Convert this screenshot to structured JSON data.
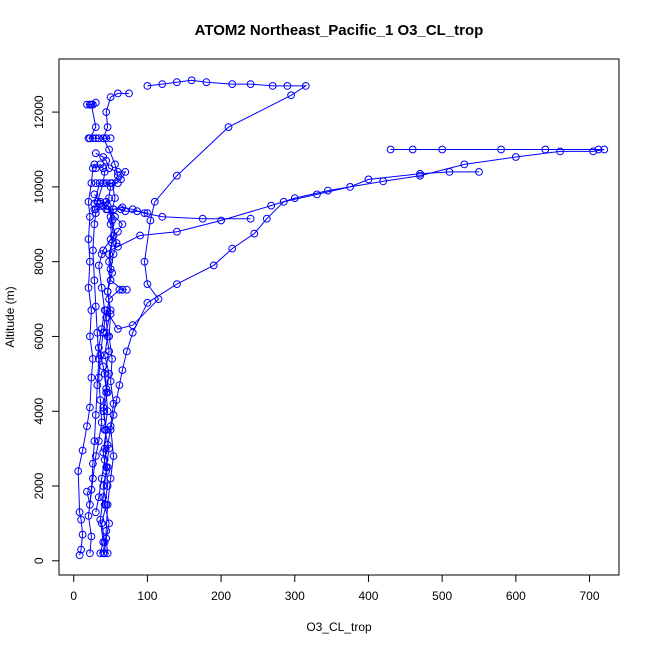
{
  "chart_data": {
    "type": "line",
    "title": "ATOM2 Northeast_Pacific_1 O3_CL_trop",
    "xlabel": "O3_CL_trop",
    "ylabel": "Altitude (m)",
    "xlim": [
      -20,
      740
    ],
    "ylim": [
      -380,
      13420
    ],
    "x_ticks": [
      0,
      100,
      200,
      300,
      400,
      500,
      600,
      700
    ],
    "y_ticks": [
      0,
      2000,
      4000,
      6000,
      8000,
      10000,
      12000
    ],
    "grid": false,
    "legend": "none",
    "marker": "open-circle",
    "color": "#0000ff",
    "series": [
      {
        "points": [
          [
            8,
            150
          ],
          [
            10,
            300
          ],
          [
            12,
            700
          ],
          [
            10,
            1100
          ],
          [
            8,
            1300
          ],
          [
            6,
            2400
          ],
          [
            12,
            2950
          ],
          [
            18,
            3600
          ],
          [
            22,
            4100
          ],
          [
            24,
            4900
          ],
          [
            26,
            5400
          ],
          [
            22,
            6000
          ],
          [
            24,
            6700
          ],
          [
            20,
            7300
          ],
          [
            22,
            8000
          ],
          [
            20,
            8600
          ],
          [
            22,
            9200
          ],
          [
            20,
            9600
          ],
          [
            24,
            10100
          ],
          [
            26,
            10500
          ],
          [
            28,
            10600
          ],
          [
            30,
            10500
          ],
          [
            36,
            10600
          ],
          [
            40,
            10500
          ],
          [
            42,
            10400
          ],
          [
            40,
            10100
          ],
          [
            32,
            9600
          ],
          [
            28,
            9400
          ],
          [
            30,
            9300
          ],
          [
            28,
            9000
          ],
          [
            26,
            8300
          ],
          [
            28,
            7500
          ],
          [
            30,
            6800
          ],
          [
            32,
            6100
          ],
          [
            34,
            5400
          ],
          [
            32,
            4700
          ],
          [
            30,
            3900
          ],
          [
            28,
            3200
          ],
          [
            26,
            2600
          ],
          [
            24,
            1900
          ],
          [
            20,
            1200
          ],
          [
            24,
            650
          ],
          [
            22,
            200
          ]
        ]
      },
      {
        "points": [
          [
            40,
            200
          ],
          [
            42,
            500
          ],
          [
            38,
            1000
          ],
          [
            44,
            1500
          ],
          [
            40,
            2000
          ],
          [
            46,
            2500
          ],
          [
            42,
            3000
          ],
          [
            44,
            3500
          ],
          [
            40,
            4000
          ],
          [
            46,
            4500
          ],
          [
            42,
            5000
          ],
          [
            48,
            5600
          ],
          [
            44,
            6100
          ],
          [
            50,
            6700
          ],
          [
            46,
            7200
          ],
          [
            52,
            7700
          ],
          [
            48,
            8200
          ],
          [
            54,
            8700
          ],
          [
            50,
            9200
          ],
          [
            56,
            9700
          ],
          [
            52,
            10100
          ],
          [
            60,
            10300
          ],
          [
            56,
            10600
          ],
          [
            48,
            11000
          ],
          [
            40,
            11300
          ],
          [
            46,
            11600
          ],
          [
            44,
            12000
          ],
          [
            50,
            12400
          ],
          [
            60,
            12500
          ],
          [
            75,
            12500
          ]
        ]
      },
      {
        "points": [
          [
            46,
            200
          ],
          [
            44,
            600
          ],
          [
            48,
            1000
          ],
          [
            42,
            1500
          ],
          [
            46,
            2000
          ],
          [
            44,
            2500
          ],
          [
            48,
            3000
          ],
          [
            42,
            3500
          ],
          [
            46,
            4000
          ],
          [
            44,
            4500
          ],
          [
            48,
            5000
          ],
          [
            42,
            5500
          ],
          [
            46,
            6000
          ],
          [
            44,
            6500
          ],
          [
            48,
            7000
          ],
          [
            62,
            7250
          ],
          [
            72,
            7250
          ],
          [
            66,
            7250
          ],
          [
            50,
            7500
          ],
          [
            48,
            8000
          ],
          [
            52,
            8500
          ],
          [
            50,
            9000
          ],
          [
            54,
            9400
          ],
          [
            66,
            9450
          ],
          [
            80,
            9400
          ],
          [
            96,
            9300
          ],
          [
            120,
            9200
          ],
          [
            175,
            9150
          ],
          [
            240,
            9150
          ]
        ]
      },
      {
        "points": [
          [
            18,
            1850
          ],
          [
            22,
            1500
          ],
          [
            26,
            2200
          ],
          [
            30,
            2800
          ],
          [
            34,
            3200
          ],
          [
            38,
            3700
          ],
          [
            36,
            4300
          ],
          [
            34,
            4900
          ],
          [
            36,
            5500
          ],
          [
            40,
            6100
          ],
          [
            44,
            6700
          ],
          [
            60,
            6200
          ],
          [
            80,
            6300
          ],
          [
            115,
            7000
          ],
          [
            100,
            7400
          ],
          [
            96,
            8000
          ],
          [
            104,
            9100
          ],
          [
            110,
            9600
          ],
          [
            140,
            10300
          ],
          [
            210,
            11600
          ],
          [
            295,
            12450
          ],
          [
            315,
            12700
          ],
          [
            290,
            12700
          ],
          [
            270,
            12700
          ],
          [
            240,
            12750
          ],
          [
            215,
            12750
          ],
          [
            180,
            12800
          ],
          [
            160,
            12850
          ],
          [
            140,
            12800
          ],
          [
            120,
            12750
          ],
          [
            100,
            12700
          ]
        ]
      },
      {
        "points": [
          [
            30,
            1300
          ],
          [
            34,
            1700
          ],
          [
            38,
            2200
          ],
          [
            42,
            2700
          ],
          [
            46,
            3100
          ],
          [
            50,
            3500
          ],
          [
            54,
            3900
          ],
          [
            58,
            4300
          ],
          [
            62,
            4700
          ],
          [
            66,
            5100
          ],
          [
            72,
            5600
          ],
          [
            80,
            6100
          ],
          [
            100,
            6900
          ],
          [
            140,
            7400
          ],
          [
            190,
            7900
          ],
          [
            215,
            8350
          ],
          [
            245,
            8750
          ],
          [
            262,
            9150
          ],
          [
            285,
            9600
          ],
          [
            330,
            9800
          ],
          [
            375,
            10000
          ],
          [
            400,
            10200
          ],
          [
            470,
            10350
          ],
          [
            510,
            10400
          ],
          [
            550,
            10400
          ]
        ]
      },
      {
        "points": [
          [
            38,
            8200
          ],
          [
            60,
            8400
          ],
          [
            90,
            8700
          ],
          [
            140,
            8800
          ],
          [
            200,
            9100
          ],
          [
            268,
            9500
          ],
          [
            300,
            9700
          ],
          [
            345,
            9900
          ],
          [
            420,
            10150
          ],
          [
            470,
            10300
          ],
          [
            530,
            10600
          ],
          [
            600,
            10800
          ],
          [
            660,
            10950
          ],
          [
            705,
            10950
          ],
          [
            720,
            11000
          ],
          [
            712,
            11000
          ],
          [
            640,
            11000
          ],
          [
            580,
            11000
          ],
          [
            500,
            11000
          ],
          [
            460,
            11000
          ],
          [
            430,
            11000
          ]
        ]
      },
      {
        "points": [
          [
            20,
            11300
          ],
          [
            30,
            11300
          ],
          [
            40,
            11300
          ],
          [
            50,
            11300
          ],
          [
            44,
            11300
          ],
          [
            34,
            11300
          ],
          [
            26,
            11300
          ],
          [
            22,
            11300
          ],
          [
            30,
            11600
          ],
          [
            24,
            12200
          ],
          [
            18,
            12200
          ],
          [
            22,
            12200
          ],
          [
            26,
            12200
          ],
          [
            30,
            12250
          ],
          [
            22,
            12200
          ]
        ]
      },
      {
        "points": [
          [
            30,
            10100
          ],
          [
            40,
            10100
          ],
          [
            50,
            10100
          ],
          [
            60,
            10100
          ],
          [
            45,
            10100
          ],
          [
            35,
            10100
          ],
          [
            28,
            9550
          ],
          [
            36,
            9550
          ],
          [
            44,
            9600
          ],
          [
            48,
            9700
          ],
          [
            40,
            9500
          ],
          [
            30,
            9400
          ],
          [
            44,
            9400
          ],
          [
            54,
            9400
          ],
          [
            64,
            9400
          ],
          [
            70,
            9350
          ],
          [
            86,
            9350
          ],
          [
            100,
            9300
          ]
        ]
      },
      {
        "points": [
          [
            28,
            9800
          ],
          [
            36,
            9600
          ],
          [
            46,
            9400
          ],
          [
            56,
            9200
          ],
          [
            66,
            9000
          ],
          [
            60,
            8800
          ],
          [
            50,
            8600
          ],
          [
            40,
            8300
          ],
          [
            34,
            7900
          ],
          [
            38,
            7300
          ],
          [
            42,
            6700
          ],
          [
            38,
            6200
          ],
          [
            34,
            5700
          ],
          [
            40,
            5200
          ],
          [
            44,
            4600
          ],
          [
            40,
            4100
          ],
          [
            44,
            3500
          ],
          [
            40,
            2900
          ],
          [
            44,
            2400
          ],
          [
            40,
            1700
          ],
          [
            36,
            1100
          ],
          [
            40,
            500
          ],
          [
            36,
            200
          ]
        ]
      },
      {
        "points": [
          [
            30,
            10900
          ],
          [
            40,
            10800
          ],
          [
            44,
            10700
          ],
          [
            48,
            10500
          ],
          [
            60,
            10400
          ],
          [
            70,
            10400
          ],
          [
            64,
            10200
          ],
          [
            50,
            10000
          ],
          [
            46,
            9500
          ],
          [
            52,
            9100
          ],
          [
            58,
            8500
          ],
          [
            54,
            8200
          ],
          [
            50,
            7800
          ],
          [
            46,
            7200
          ],
          [
            50,
            6600
          ],
          [
            48,
            6000
          ],
          [
            52,
            5400
          ],
          [
            50,
            4800
          ],
          [
            54,
            4200
          ],
          [
            50,
            3600
          ],
          [
            54,
            2800
          ],
          [
            50,
            2200
          ],
          [
            46,
            1500
          ],
          [
            44,
            800
          ],
          [
            42,
            200
          ]
        ]
      }
    ]
  }
}
